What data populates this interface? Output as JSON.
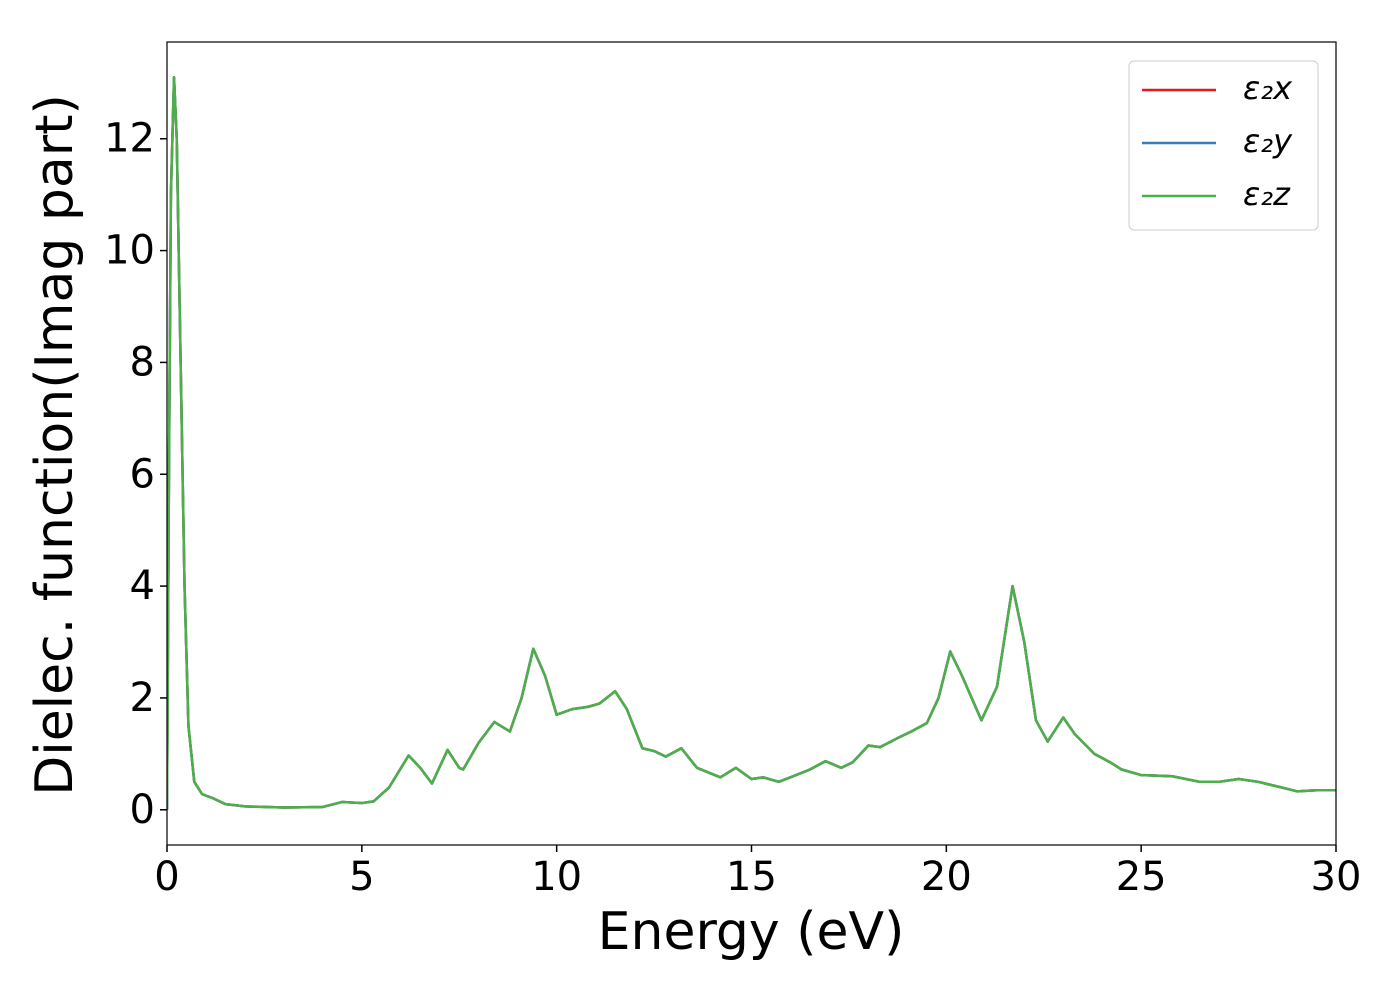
{
  "chart_data": {
    "type": "line",
    "x_label": "Energy (eV)",
    "y_label": "Dielec. function(Imag part)",
    "x": [
      0,
      0.05,
      0.1,
      0.18,
      0.25,
      0.35,
      0.45,
      0.55,
      0.7,
      0.9,
      1.2,
      1.5,
      2,
      3,
      4,
      4.5,
      5,
      5.3,
      5.7,
      6.2,
      6.5,
      6.8,
      7.2,
      7.5,
      7.6,
      8,
      8.4,
      8.8,
      9.1,
      9.4,
      9.7,
      10,
      10.4,
      10.8,
      11.1,
      11.5,
      11.8,
      12.2,
      12.5,
      12.8,
      13.2,
      13.6,
      14.2,
      14.6,
      15,
      15.3,
      15.7,
      16,
      16.5,
      16.9,
      17.3,
      17.6,
      18,
      18.3,
      18.8,
      19.1,
      19.5,
      19.8,
      20.1,
      20.4,
      20.9,
      21.3,
      21.7,
      22,
      22.3,
      22.6,
      23,
      23.3,
      23.8,
      24.2,
      24.5,
      25,
      25.8,
      26.5,
      27,
      27.5,
      28,
      28.6,
      29,
      29.5,
      30
    ],
    "series": [
      {
        "name": "ε₂x",
        "color": "#e41a1c",
        "values": [
          0,
          6,
          11,
          13.1,
          12,
          8,
          4,
          1.5,
          0.5,
          0.28,
          0.2,
          0.1,
          0.06,
          0.04,
          0.05,
          0.14,
          0.12,
          0.15,
          0.4,
          0.97,
          0.75,
          0.47,
          1.07,
          0.75,
          0.72,
          1.2,
          1.57,
          1.4,
          2.0,
          2.88,
          2.4,
          1.7,
          1.8,
          1.84,
          1.9,
          2.12,
          1.8,
          1.1,
          1.05,
          0.95,
          1.1,
          0.75,
          0.58,
          0.75,
          0.55,
          0.58,
          0.5,
          0.58,
          0.72,
          0.87,
          0.75,
          0.85,
          1.15,
          1.12,
          1.3,
          1.4,
          1.55,
          2.0,
          2.83,
          2.4,
          1.6,
          2.2,
          4.0,
          3.0,
          1.6,
          1.22,
          1.65,
          1.35,
          1.0,
          0.85,
          0.72,
          0.62,
          0.6,
          0.5,
          0.5,
          0.55,
          0.5,
          0.4,
          0.33,
          0.35,
          0.35
        ]
      },
      {
        "name": "ε₂y",
        "color": "#377eb8",
        "values": [
          0,
          6,
          11,
          13.1,
          12,
          8,
          4,
          1.5,
          0.5,
          0.28,
          0.2,
          0.1,
          0.06,
          0.04,
          0.05,
          0.14,
          0.12,
          0.15,
          0.4,
          0.97,
          0.75,
          0.47,
          1.07,
          0.75,
          0.72,
          1.2,
          1.57,
          1.4,
          2.0,
          2.88,
          2.4,
          1.7,
          1.8,
          1.84,
          1.9,
          2.12,
          1.8,
          1.1,
          1.05,
          0.95,
          1.1,
          0.75,
          0.58,
          0.75,
          0.55,
          0.58,
          0.5,
          0.58,
          0.72,
          0.87,
          0.75,
          0.85,
          1.15,
          1.12,
          1.3,
          1.4,
          1.55,
          2.0,
          2.83,
          2.4,
          1.6,
          2.2,
          4.0,
          3.0,
          1.6,
          1.22,
          1.65,
          1.35,
          1.0,
          0.85,
          0.72,
          0.62,
          0.6,
          0.5,
          0.5,
          0.55,
          0.5,
          0.4,
          0.33,
          0.35,
          0.35
        ]
      },
      {
        "name": "ε₂z",
        "color": "#4daf4a",
        "values": [
          0,
          6,
          11,
          13.1,
          12,
          8,
          4,
          1.5,
          0.5,
          0.28,
          0.2,
          0.1,
          0.06,
          0.04,
          0.05,
          0.14,
          0.12,
          0.15,
          0.4,
          0.97,
          0.75,
          0.47,
          1.07,
          0.75,
          0.72,
          1.2,
          1.57,
          1.4,
          2.0,
          2.88,
          2.4,
          1.7,
          1.8,
          1.84,
          1.9,
          2.12,
          1.8,
          1.1,
          1.05,
          0.95,
          1.1,
          0.75,
          0.58,
          0.75,
          0.55,
          0.58,
          0.5,
          0.58,
          0.72,
          0.87,
          0.75,
          0.85,
          1.15,
          1.12,
          1.3,
          1.4,
          1.55,
          2.0,
          2.83,
          2.4,
          1.6,
          2.2,
          4.0,
          3.0,
          1.6,
          1.22,
          1.65,
          1.35,
          1.0,
          0.85,
          0.72,
          0.62,
          0.6,
          0.5,
          0.5,
          0.55,
          0.5,
          0.4,
          0.33,
          0.35,
          0.35
        ]
      }
    ],
    "xlim": [
      0,
      30
    ],
    "xticks": [
      0,
      5,
      10,
      15,
      20,
      25,
      30
    ],
    "ylim": [
      -0.63,
      13.73
    ],
    "yticks": [
      0,
      2,
      4,
      6,
      8,
      10,
      12
    ],
    "grid": false,
    "legend": "upper right"
  }
}
